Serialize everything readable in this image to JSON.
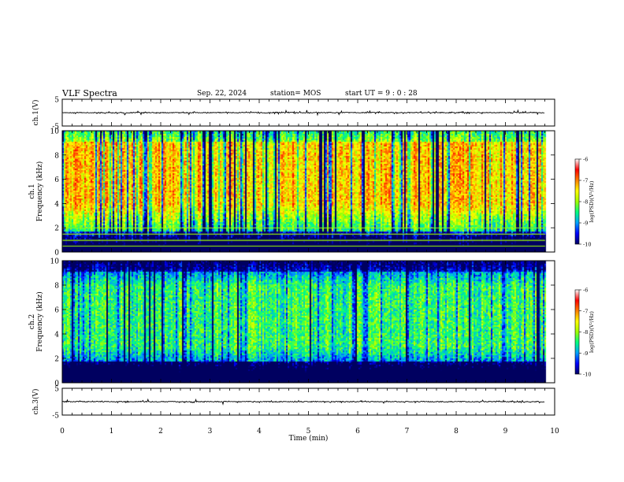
{
  "header": {
    "title": "VLF Spectra",
    "date": "Sep. 22, 2024",
    "station": "station= MOS",
    "start_ut": "start  UT  =   9  : 0   : 28"
  },
  "chart_data": [
    {
      "type": "line",
      "panel": "ch1-waveform",
      "ylabel": "ch.1(V)",
      "ylim": [
        -5,
        5
      ],
      "yticks": [
        5,
        -5
      ],
      "xlim": [
        0,
        10
      ],
      "baseline_value": 0,
      "data_end_min": 9.8
    },
    {
      "type": "heatmap",
      "panel": "ch1-spectrogram",
      "ylabel": "ch.1\nFrequency (kHz)",
      "ylim": [
        0,
        10
      ],
      "yticks": [
        0,
        2,
        4,
        6,
        8,
        10
      ],
      "xlim": [
        0,
        10
      ],
      "data_end_min": 9.8,
      "colorbar": {
        "label": "log(PSD)(V²/Hz)",
        "range": [
          -10,
          -6
        ],
        "ticks": [
          "-6",
          "-7",
          "-8",
          "-9",
          "-10"
        ]
      },
      "band_center_khz": 6.5,
      "background_level": -7.3,
      "horizontal_lines_khz": [
        0.5,
        1.0,
        1.5,
        2.0
      ]
    },
    {
      "type": "heatmap",
      "panel": "ch2-spectrogram",
      "ylabel": "ch.2\nFrequency (kHz)",
      "ylim": [
        0,
        10
      ],
      "yticks": [
        0,
        2,
        4,
        6,
        8,
        10
      ],
      "xlim": [
        0,
        10
      ],
      "data_end_min": 9.8,
      "colorbar": {
        "label": "log(PSD)(V²/Hz)",
        "range": [
          -10,
          -6
        ],
        "ticks": [
          "-6",
          "-7",
          "-8",
          "-9",
          "-10"
        ]
      },
      "band_center_khz": 5.5,
      "background_level": -8.4
    },
    {
      "type": "line",
      "panel": "ch3-waveform",
      "ylabel": "ch.3(V)",
      "ylim": [
        -5,
        5
      ],
      "yticks": [
        5,
        -5
      ],
      "xlim": [
        0,
        10
      ],
      "baseline_value": 0,
      "data_end_min": 9.8
    }
  ],
  "xaxis": {
    "label": "Time  (min)",
    "ticks": [
      "0",
      "1",
      "2",
      "3",
      "4",
      "5",
      "6",
      "7",
      "8",
      "9",
      "10"
    ]
  },
  "colormap": [
    "#000060",
    "#0000ff",
    "#00a0ff",
    "#00ff80",
    "#a0ff00",
    "#ffff00",
    "#ff8000",
    "#ff0000",
    "#ffffff"
  ]
}
